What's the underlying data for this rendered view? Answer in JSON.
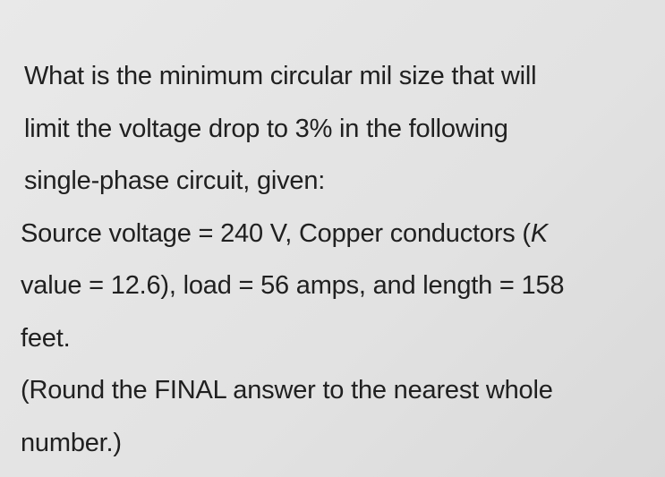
{
  "question": {
    "lines": [
      "What is the minimum circular mil size that will",
      "limit the voltage drop to 3% in the following",
      "single-phase circuit, given:",
      {
        "text": "Source voltage = 240 V, Copper conductors (",
        "variable": "K"
      },
      "value = 12.6), load = 56 amps, and length = 158",
      "feet.",
      "(Round the FINAL answer to the nearest whole",
      "number.)"
    ]
  }
}
